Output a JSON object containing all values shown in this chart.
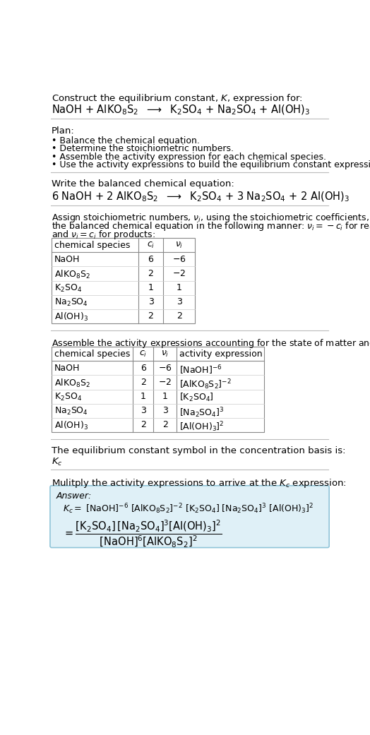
{
  "bg_color": "#ffffff",
  "text_color": "#000000",
  "section1_title": "Construct the equilibrium constant, $K$, expression for:",
  "section1_eq": "NaOH + AlKO$_8$S$_2$  $\\longrightarrow$  K$_2$SO$_4$ + Na$_2$SO$_4$ + Al(OH)$_3$",
  "section2_title": "Plan:",
  "section2_bullets": [
    "• Balance the chemical equation.",
    "• Determine the stoichiometric numbers.",
    "• Assemble the activity expression for each chemical species.",
    "• Use the activity expressions to build the equilibrium constant expression."
  ],
  "section3_title": "Write the balanced chemical equation:",
  "section3_eq": "6 NaOH + 2 AlKO$_8$S$_2$  $\\longrightarrow$  K$_2$SO$_4$ + 3 Na$_2$SO$_4$ + 2 Al(OH)$_3$",
  "section4_title1": "Assign stoichiometric numbers, $\\nu_i$, using the stoichiometric coefficients, $c_i$, from",
  "section4_title2": "the balanced chemical equation in the following manner: $\\nu_i = -c_i$ for reactants",
  "section4_title3": "and $\\nu_i = c_i$ for products:",
  "table1_headers": [
    "chemical species",
    "$c_i$",
    "$\\nu_i$"
  ],
  "table1_rows": [
    [
      "NaOH",
      "6",
      "$-6$"
    ],
    [
      "AlKO$_8$S$_2$",
      "2",
      "$-2$"
    ],
    [
      "K$_2$SO$_4$",
      "1",
      "1"
    ],
    [
      "Na$_2$SO$_4$",
      "3",
      "3"
    ],
    [
      "Al(OH)$_3$",
      "2",
      "2"
    ]
  ],
  "section5_title": "Assemble the activity expressions accounting for the state of matter and $\\nu_i$:",
  "table2_headers": [
    "chemical species",
    "$c_i$",
    "$\\nu_i$",
    "activity expression"
  ],
  "table2_rows": [
    [
      "NaOH",
      "6",
      "$-6$",
      "[NaOH]$^{-6}$"
    ],
    [
      "AlKO$_8$S$_2$",
      "2",
      "$-2$",
      "[AlKO$_8$S$_2$]$^{-2}$"
    ],
    [
      "K$_2$SO$_4$",
      "1",
      "1",
      "[K$_2$SO$_4$]"
    ],
    [
      "Na$_2$SO$_4$",
      "3",
      "3",
      "[Na$_2$SO$_4$]$^3$"
    ],
    [
      "Al(OH)$_3$",
      "2",
      "2",
      "[Al(OH)$_3$]$^2$"
    ]
  ],
  "section6_title": "The equilibrium constant symbol in the concentration basis is:",
  "section6_symbol": "$K_c$",
  "section7_title": "Mulitply the activity expressions to arrive at the $K_c$ expression:",
  "answer_label": "Answer:",
  "answer_line1": "$K_c =$ [NaOH]$^{-6}$ [AlKO$_8$S$_2$]$^{-2}$ [K$_2$SO$_4$] [Na$_2$SO$_4$]$^3$ [Al(OH)$_3$]$^2$",
  "answer_line2": "$= \\dfrac{[\\mathrm{K_2SO_4}]\\,[\\mathrm{Na_2SO_4}]^3[\\mathrm{Al(OH)_3}]^2}{[\\mathrm{NaOH}]^6[\\mathrm{AlKO_8S_2}]^2}$",
  "answer_box_color": "#dff0f7",
  "answer_box_border": "#90c4d8"
}
